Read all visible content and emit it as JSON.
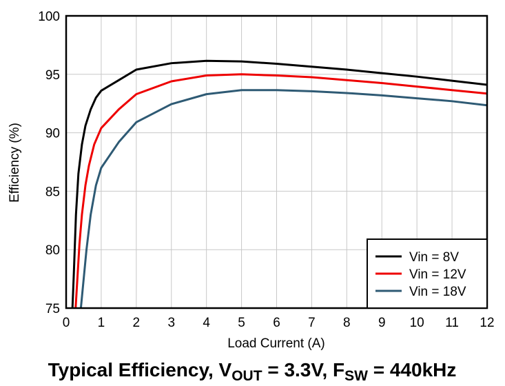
{
  "chart_data": {
    "type": "line",
    "xlabel": "Load Current (A)",
    "ylabel": "Efficiency (%)",
    "xlim": [
      0,
      12
    ],
    "ylim": [
      75,
      100
    ],
    "x_ticks": [
      0,
      1,
      2,
      3,
      4,
      5,
      6,
      7,
      8,
      9,
      10,
      11,
      12
    ],
    "y_ticks": [
      75,
      80,
      85,
      90,
      95,
      100
    ],
    "grid": true,
    "legend_position": "bottom-right",
    "caption": {
      "prefix": "Typical Efficiency, V",
      "sub1": "OUT",
      "middle": " = 3.3V, F",
      "sub2": "SW",
      "suffix": " = 440kHz"
    },
    "series": [
      {
        "name": "Vin = 8V",
        "color": "#000000",
        "x": [
          0.18,
          0.22,
          0.28,
          0.35,
          0.45,
          0.55,
          0.7,
          0.85,
          1.0,
          1.5,
          2.0,
          3.0,
          4.0,
          5.0,
          6.0,
          7.0,
          8.0,
          9.0,
          10.0,
          11.0,
          12.0
        ],
        "y": [
          75.0,
          78.0,
          83.0,
          86.5,
          89.0,
          90.6,
          92.0,
          93.0,
          93.6,
          94.5,
          95.4,
          95.95,
          96.15,
          96.1,
          95.9,
          95.65,
          95.4,
          95.1,
          94.8,
          94.45,
          94.1
        ]
      },
      {
        "name": "Vin = 12V",
        "color": "#ee0000",
        "x": [
          0.27,
          0.32,
          0.38,
          0.45,
          0.55,
          0.65,
          0.8,
          1.0,
          1.5,
          2.0,
          3.0,
          4.0,
          5.0,
          6.0,
          7.0,
          8.0,
          9.0,
          10.0,
          11.0,
          12.0
        ],
        "y": [
          75.0,
          77.5,
          80.5,
          83.0,
          85.5,
          87.2,
          89.0,
          90.4,
          92.0,
          93.3,
          94.4,
          94.9,
          95.0,
          94.9,
          94.75,
          94.5,
          94.25,
          93.95,
          93.65,
          93.35
        ]
      },
      {
        "name": "Vin = 18V",
        "color": "#2e5a74",
        "x": [
          0.42,
          0.5,
          0.58,
          0.7,
          0.85,
          1.0,
          1.5,
          2.0,
          3.0,
          4.0,
          5.0,
          6.0,
          7.0,
          8.0,
          9.0,
          10.0,
          11.0,
          12.0
        ],
        "y": [
          75.0,
          77.5,
          80.0,
          83.0,
          85.5,
          87.0,
          89.2,
          90.9,
          92.45,
          93.3,
          93.65,
          93.65,
          93.55,
          93.4,
          93.2,
          92.95,
          92.7,
          92.35
        ]
      }
    ]
  }
}
